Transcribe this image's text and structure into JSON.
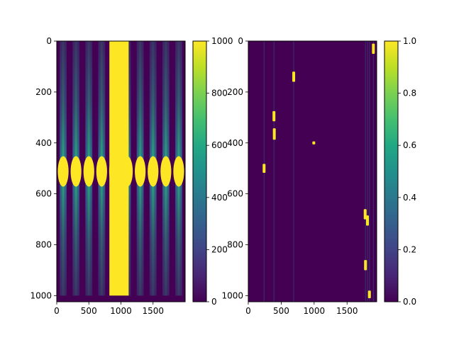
{
  "colors": {
    "background": "#ffffff",
    "viridis_dark": "#440154",
    "viridis_yellow": "#fde725",
    "axis": "#000000"
  },
  "chart_data": [
    {
      "type": "heatmap",
      "colormap": "viridis",
      "x_ticks": [
        "0",
        "500",
        "1000",
        "1500"
      ],
      "y_ticks": [
        "0",
        "200",
        "400",
        "600",
        "800",
        "1000"
      ],
      "xlim": [
        0,
        2000
      ],
      "ylim": [
        1024,
        0
      ],
      "colorbar": {
        "range": [
          0,
          1000
        ],
        "ticks": [
          "0",
          "200",
          "400",
          "600",
          "800",
          "1000"
        ]
      },
      "grid": false,
      "pattern": {
        "bright_band_x": [
          820,
          1120
        ],
        "stripe_period_x": 200,
        "ellipse_center_y": 512,
        "ellipse_half_height": 60,
        "bottom_dark_band_y": [
          1000,
          1024
        ]
      }
    },
    {
      "type": "heatmap",
      "colormap": "viridis",
      "x_ticks": [
        "0",
        "500",
        "1000",
        "1500"
      ],
      "y_ticks": [
        "0",
        "200",
        "400",
        "600",
        "800",
        "1000"
      ],
      "xlim": [
        0,
        1950
      ],
      "ylim": [
        1024,
        0
      ],
      "colorbar": {
        "range": [
          0,
          1.0
        ],
        "ticks": [
          "0.0",
          "0.2",
          "0.4",
          "0.6",
          "0.8",
          "1.0"
        ]
      },
      "grid": false,
      "bright_spots": [
        {
          "x": 240,
          "y": 500,
          "h": 35
        },
        {
          "x": 390,
          "y": 295,
          "h": 40
        },
        {
          "x": 395,
          "y": 365,
          "h": 45
        },
        {
          "x": 690,
          "y": 140,
          "h": 40
        },
        {
          "x": 995,
          "y": 400,
          "h": 12
        },
        {
          "x": 1775,
          "y": 680,
          "h": 40
        },
        {
          "x": 1810,
          "y": 705,
          "h": 40
        },
        {
          "x": 1780,
          "y": 880,
          "h": 40
        },
        {
          "x": 1840,
          "y": 995,
          "h": 30
        },
        {
          "x": 1900,
          "y": 30,
          "h": 40
        }
      ],
      "faint_lines_x": [
        240,
        390,
        690,
        1780,
        1810,
        1840,
        1900
      ]
    }
  ]
}
